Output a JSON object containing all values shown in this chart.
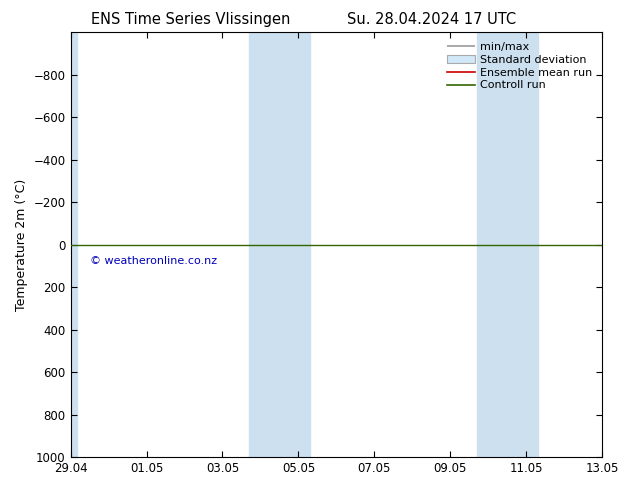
{
  "title_left": "ENS Time Series Vlissingen",
  "title_right": "Su. 28.04.2024 17 UTC",
  "ylabel": "Temperature 2m (°C)",
  "ylim_bottom": 1000,
  "ylim_top": -1000,
  "yticks": [
    -800,
    -600,
    -400,
    -200,
    0,
    200,
    400,
    600,
    800,
    1000
  ],
  "xtick_labels": [
    "29.04",
    "01.05",
    "03.05",
    "05.05",
    "07.05",
    "09.05",
    "11.05",
    "13.05"
  ],
  "xtick_positions": [
    0,
    2,
    4,
    6,
    8,
    10,
    12,
    14
  ],
  "xlim_left": 0,
  "xlim_right": 14,
  "control_run_y": 0,
  "background_color": "#ffffff",
  "band_color": "#cce0f0",
  "blue_bands": [
    {
      "x_start": 0.0,
      "x_end": 0.18
    },
    {
      "x_start": 4.7,
      "x_end": 5.5
    },
    {
      "x_start": 5.5,
      "x_end": 6.3
    },
    {
      "x_start": 10.7,
      "x_end": 11.5
    },
    {
      "x_start": 11.5,
      "x_end": 12.3
    }
  ],
  "legend_entries": [
    "min/max",
    "Standard deviation",
    "Ensemble mean run",
    "Controll run"
  ],
  "legend_line_colors": [
    "#999999",
    "#bbbbbb",
    "#cc0000",
    "#336600"
  ],
  "green_line_color": "#336600",
  "copyright_text": "© weatheronline.co.nz",
  "copyright_color": "#0000bb",
  "title_fontsize": 10.5,
  "axis_label_fontsize": 9,
  "tick_fontsize": 8.5,
  "legend_fontsize": 8
}
